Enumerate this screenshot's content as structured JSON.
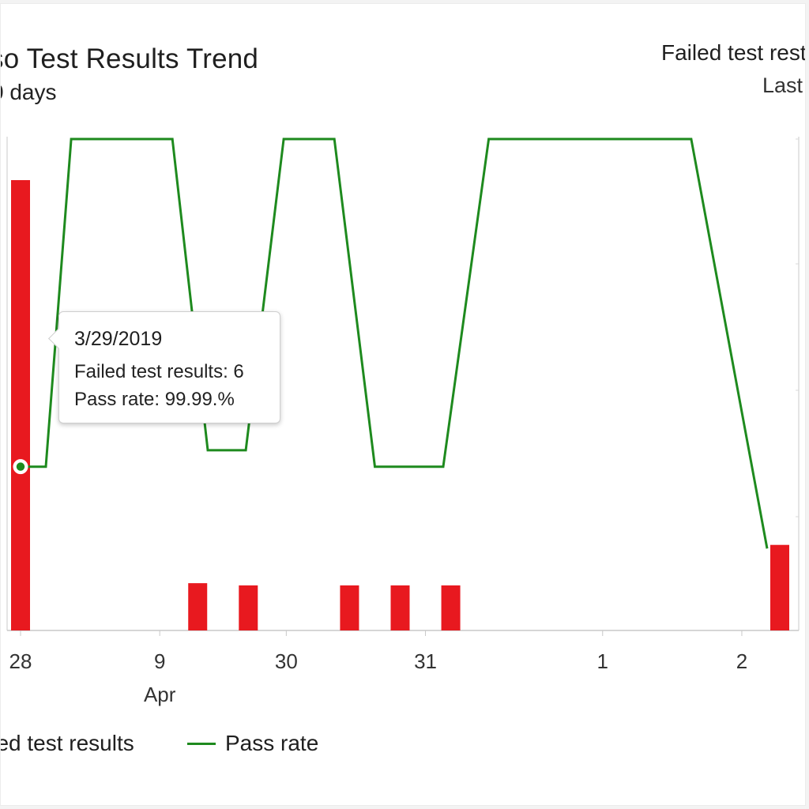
{
  "header": {
    "title": "so Test Results Trend",
    "subtitle": "0 days",
    "right_title": "Failed test rest",
    "right_subtitle": "Last"
  },
  "tooltip": {
    "date": "3/29/2019",
    "failed_label": "Failed test results",
    "failed_sep": ": ",
    "failed_value": "6",
    "pass_label": "Pass rate",
    "pass_sep": ": ",
    "pass_value": "99.99.%"
  },
  "legend": {
    "failed_label": "iled test results",
    "pass_label": "Pass rate"
  },
  "colors": {
    "failed": "#e8191f",
    "pass": "#1e8a1e",
    "axis": "#c8c8c8",
    "gridline": "#d9d9d9"
  },
  "chart_data": {
    "type": "bar",
    "title": "so Test Results Trend",
    "x_ticks": [
      {
        "label": "28",
        "index": 0
      },
      {
        "label": "9",
        "index": 5.5
      },
      {
        "label": "30",
        "index": 10.5
      },
      {
        "label": "31",
        "index": 16
      },
      {
        "label": "1",
        "index": 23
      },
      {
        "label": "2",
        "index": 28.5
      }
    ],
    "x_month_label": {
      "label": "Apr",
      "index": 5.5
    },
    "index_range": [
      -0.5,
      30.3
    ],
    "failed_range": [
      0,
      22
    ],
    "pass_range": [
      99.985,
      100.0
    ],
    "series": [
      {
        "name": "iled test results",
        "kind": "bar",
        "color": "#e8191f",
        "points": [
          {
            "i": 0,
            "v": 20
          },
          {
            "i": 7,
            "v": 2.1
          },
          {
            "i": 9,
            "v": 2.0
          },
          {
            "i": 13,
            "v": 2.0
          },
          {
            "i": 15,
            "v": 2.0
          },
          {
            "i": 17,
            "v": 2.0
          },
          {
            "i": 30,
            "v": 3.8
          }
        ]
      },
      {
        "name": "Pass rate",
        "kind": "line",
        "color": "#1e8a1e",
        "points": [
          {
            "i": 0,
            "v": 99.99
          },
          {
            "i": 1,
            "v": 99.99
          },
          {
            "i": 2,
            "v": 100.0
          },
          {
            "i": 6,
            "v": 100.0
          },
          {
            "i": 7.4,
            "v": 99.9905
          },
          {
            "i": 8.9,
            "v": 99.9905
          },
          {
            "i": 10.4,
            "v": 100.0
          },
          {
            "i": 12.4,
            "v": 100.0
          },
          {
            "i": 14,
            "v": 99.99
          },
          {
            "i": 16.7,
            "v": 99.99
          },
          {
            "i": 18.5,
            "v": 100.0
          },
          {
            "i": 26.5,
            "v": 100.0
          },
          {
            "i": 29.5,
            "v": 99.9875
          }
        ]
      }
    ],
    "highlight": {
      "series": "Pass rate",
      "i": 0,
      "v": 99.99
    }
  }
}
